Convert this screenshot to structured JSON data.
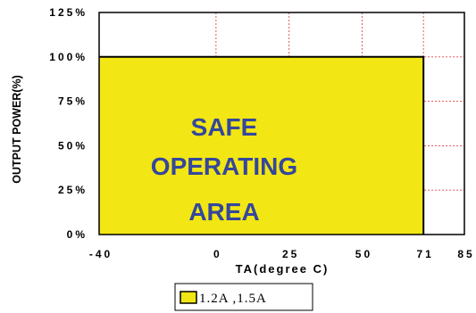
{
  "chart_data": {
    "type": "area",
    "x": [
      -40,
      71,
      71
    ],
    "series": [
      {
        "name": "1.2A ,1.5A",
        "values": [
          100,
          100,
          0
        ],
        "color": "#f2e614"
      }
    ],
    "xticks": [
      "-40",
      "0",
      "25",
      "50",
      "71",
      "85"
    ],
    "xtick_values": [
      -40,
      0,
      25,
      50,
      71,
      85
    ],
    "yticks": [
      "0%",
      "25%",
      "50%",
      "75%",
      "100%",
      "125%"
    ],
    "ytick_values": [
      0,
      25,
      50,
      75,
      100,
      125
    ],
    "xlim": [
      -40,
      85
    ],
    "ylim": [
      0,
      125
    ],
    "xlabel": "TA(degree C)",
    "ylabel": "OUTPUT POWER(%)",
    "annotation": [
      "SAFE",
      "OPERATING",
      "AREA"
    ],
    "grid": true,
    "grid_color": "#e8444a",
    "annotation_color": "#34479c",
    "legend_position": "bottom"
  }
}
